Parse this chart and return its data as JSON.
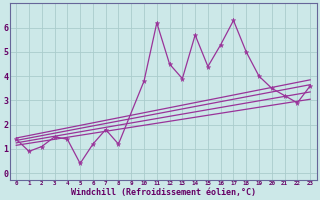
{
  "xlabel": "Windchill (Refroidissement éolien,°C)",
  "background_color": "#cce8e8",
  "grid_color": "#aacccc",
  "line_color": "#993399",
  "x_scatter": [
    0,
    1,
    2,
    3,
    4,
    5,
    6,
    7,
    8,
    10,
    11,
    12,
    13,
    14,
    15,
    16,
    17,
    18,
    19,
    20,
    21,
    22,
    23
  ],
  "y_scatter": [
    1.4,
    0.9,
    1.1,
    1.5,
    1.4,
    0.4,
    1.2,
    1.8,
    1.2,
    3.8,
    6.2,
    4.5,
    3.9,
    5.7,
    4.4,
    5.3,
    6.3,
    5.0,
    4.0,
    3.5,
    3.2,
    2.9,
    3.6
  ],
  "reg_lines": [
    {
      "x": [
        0,
        23
      ],
      "y": [
        1.35,
        3.65
      ]
    },
    {
      "x": [
        0,
        23
      ],
      "y": [
        1.25,
        3.35
      ]
    },
    {
      "x": [
        0,
        23
      ],
      "y": [
        1.15,
        3.05
      ]
    },
    {
      "x": [
        0,
        23
      ],
      "y": [
        1.45,
        3.85
      ]
    }
  ],
  "xlim": [
    -0.5,
    23.5
  ],
  "ylim": [
    -0.3,
    7.0
  ],
  "yticks": [
    0,
    1,
    2,
    3,
    4,
    5,
    6
  ],
  "xticks": [
    0,
    1,
    2,
    3,
    4,
    5,
    6,
    7,
    8,
    9,
    10,
    11,
    12,
    13,
    14,
    15,
    16,
    17,
    18,
    19,
    20,
    21,
    22,
    23
  ],
  "xlabel_fontsize": 6,
  "xlabel_color": "#660066",
  "tick_color": "#660066",
  "border_color": "#666699"
}
